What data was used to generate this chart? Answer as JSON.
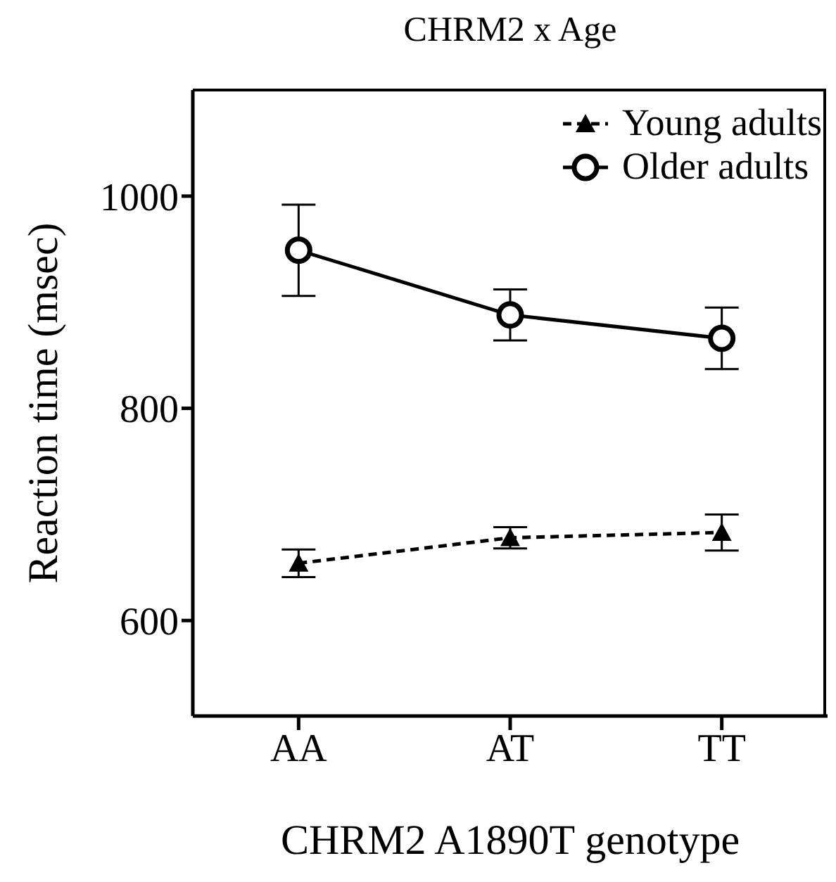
{
  "chart_data": {
    "type": "line",
    "title": "CHRM2 x Age",
    "xlabel": "CHRM2 A1890T genotype",
    "ylabel": "Reaction time (msec)",
    "categories": [
      "AA",
      "AT",
      "TT"
    ],
    "series": [
      {
        "name": "Young adults",
        "color": "#000000",
        "values": [
          654,
          678,
          683
        ],
        "errors": [
          13,
          10,
          17
        ],
        "marker": "triangle",
        "line_style": "dashed"
      },
      {
        "name": "Older adults",
        "color": "#000000",
        "values": [
          949,
          888,
          866
        ],
        "errors": [
          43,
          24,
          29
        ],
        "marker": "circle",
        "line_style": "solid"
      }
    ],
    "ylim": [
      510,
      1100
    ],
    "yticks": [
      600,
      800,
      1000
    ],
    "grid": false,
    "legend": "top right"
  }
}
